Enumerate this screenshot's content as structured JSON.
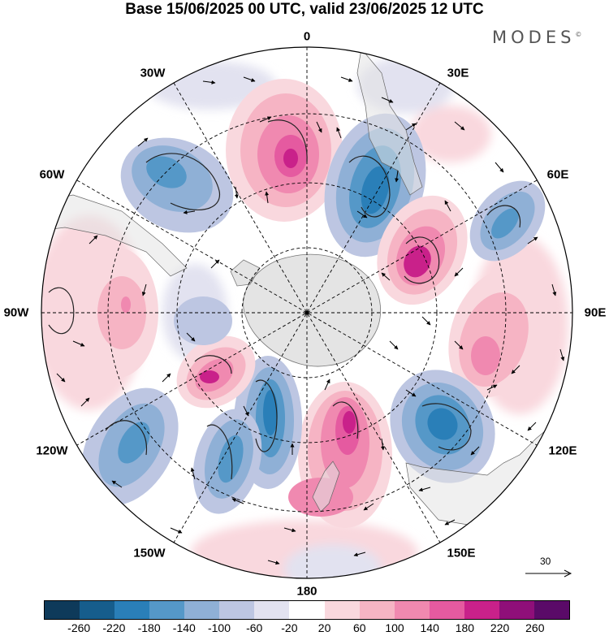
{
  "title": "Base 15/06/2025 00 UTC, valid 23/06/2025 12 UTC",
  "brand": "MODES",
  "brand_mark": "©",
  "longitude_labels": {
    "lon_0": "0",
    "lon_30e": "30E",
    "lon_60e": "60E",
    "lon_90e": "90E",
    "lon_120e": "120E",
    "lon_150e": "150E",
    "lon_180": "180",
    "lon_150w": "150W",
    "lon_120w": "120W",
    "lon_90w": "90W",
    "lon_60w": "60W",
    "lon_30w": "30W"
  },
  "vector_reference": "30",
  "colorbar": {
    "colors": [
      "#0e3a5a",
      "#165d8c",
      "#2a7fb8",
      "#5598c8",
      "#8fb0d6",
      "#bdc6e2",
      "#e2e2f0",
      "#ffffff",
      "#f9d8de",
      "#f6b4c4",
      "#f089b0",
      "#e55aa0",
      "#c9218a",
      "#8f0f79",
      "#5a0a68"
    ],
    "ticks": [
      "-260",
      "-220",
      "-180",
      "-140",
      "-100",
      "-60",
      "-20",
      "20",
      "60",
      "100",
      "140",
      "180",
      "220",
      "260"
    ]
  },
  "map_features": {
    "projection": "south polar stereographic",
    "blobs": [
      {
        "name": "blue-anomaly-southwest-atlantic",
        "sign": "negative",
        "level": -140
      },
      {
        "name": "pink-anomaly-south-atlantic",
        "sign": "positive",
        "level": 180
      },
      {
        "name": "blue-anomaly-south-of-africa",
        "sign": "negative",
        "level": -180
      },
      {
        "name": "pink-anomaly-southwest-indian",
        "sign": "positive",
        "level": 180
      },
      {
        "name": "blue-anomaly-southern-indian",
        "sign": "negative",
        "level": -140
      },
      {
        "name": "pink-anomaly-southeast-indian",
        "sign": "positive",
        "level": 100
      },
      {
        "name": "blue-anomaly-south-australia",
        "sign": "negative",
        "level": -180
      },
      {
        "name": "pink-anomaly-new-zealand",
        "sign": "positive",
        "level": 180
      },
      {
        "name": "blue-anomaly-ross-sea",
        "sign": "negative",
        "level": -140
      },
      {
        "name": "blue-anomaly-south-pacific",
        "sign": "negative",
        "level": -140
      },
      {
        "name": "pink-anomaly-amundsen-sea",
        "sign": "positive",
        "level": 180
      },
      {
        "name": "pink-anomaly-southeast-pacific",
        "sign": "positive",
        "level": 60
      }
    ]
  }
}
